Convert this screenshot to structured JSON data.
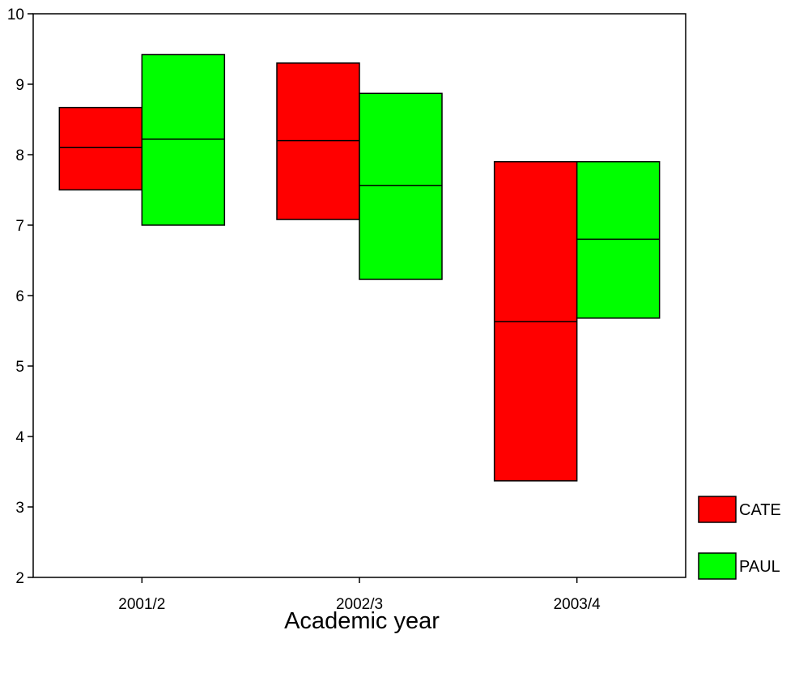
{
  "chart_data": {
    "type": "boxplot",
    "xlabel": "Academic year",
    "ylabel": "",
    "ylim": [
      2,
      10
    ],
    "yticks": [
      2,
      3,
      4,
      5,
      6,
      7,
      8,
      9,
      10
    ],
    "categories": [
      "2001/2",
      "2002/3",
      "2003/4"
    ],
    "legend_position": "right-bottom",
    "series": [
      {
        "name": "CATE",
        "color": "#ff0000",
        "boxes": [
          {
            "q1": 7.5,
            "median": 8.1,
            "q3": 8.67
          },
          {
            "q1": 7.08,
            "median": 8.2,
            "q3": 9.3
          },
          {
            "q1": 3.37,
            "median": 5.63,
            "q3": 7.9
          }
        ]
      },
      {
        "name": "PAUL",
        "color": "#00ff00",
        "boxes": [
          {
            "q1": 7.0,
            "median": 8.22,
            "q3": 9.42
          },
          {
            "q1": 6.23,
            "median": 7.56,
            "q3": 8.87
          },
          {
            "q1": 5.68,
            "median": 6.8,
            "q3": 7.9
          }
        ]
      }
    ]
  }
}
